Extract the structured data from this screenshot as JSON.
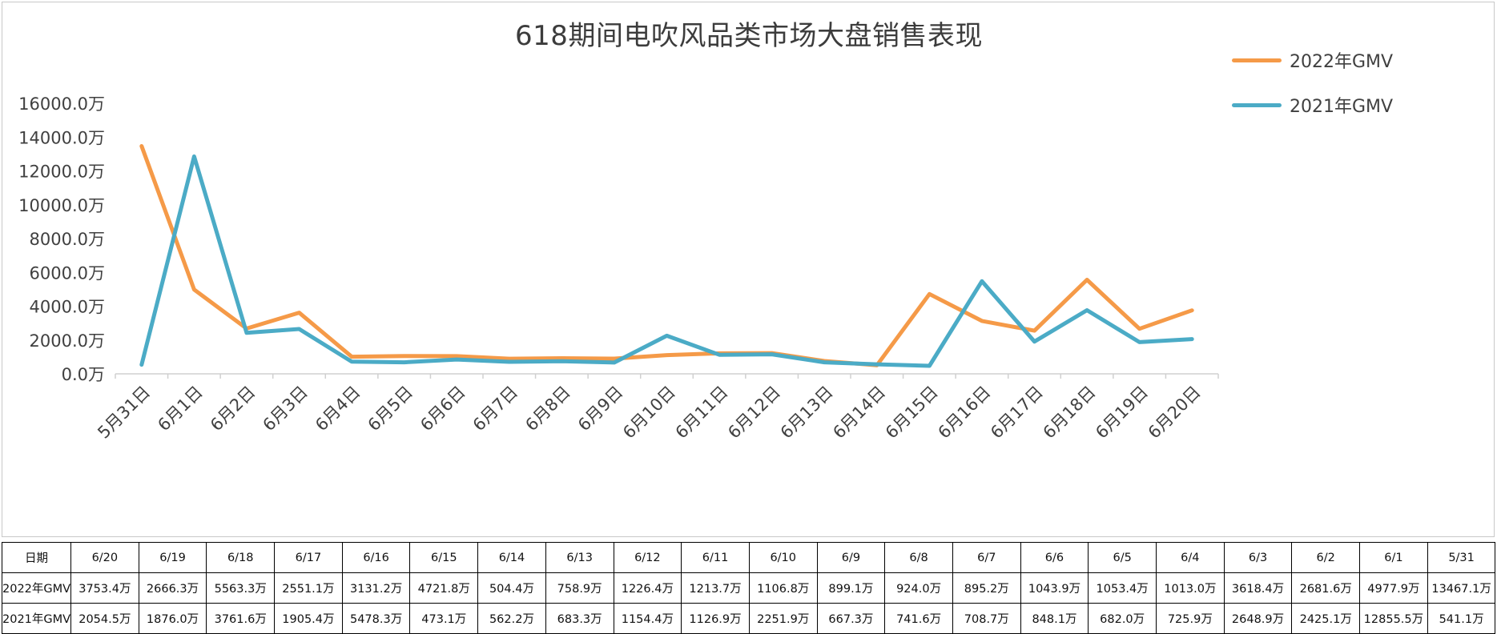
{
  "chart_data": {
    "type": "line",
    "title": "618期间电吹风品类市场大盘销售表现",
    "categories": [
      "5月31日",
      "6月1日",
      "6月2日",
      "6月3日",
      "6月4日",
      "6月5日",
      "6月6日",
      "6月7日",
      "6月8日",
      "6月9日",
      "6月10日",
      "6月11日",
      "6月12日",
      "6月13日",
      "6月14日",
      "6月15日",
      "6月16日",
      "6月17日",
      "6月18日",
      "6月19日",
      "6月20日"
    ],
    "series": [
      {
        "name": "2022年GMV",
        "color": "#f59a48",
        "values": [
          13467.1,
          4977.9,
          2681.6,
          3618.4,
          1013.0,
          1053.4,
          1043.9,
          895.2,
          924.0,
          899.1,
          1106.8,
          1213.7,
          1226.4,
          758.9,
          504.4,
          4721.8,
          3131.2,
          2551.1,
          5563.3,
          2666.3,
          3753.4
        ]
      },
      {
        "name": "2021年GMV",
        "color": "#4babc6",
        "values": [
          541.1,
          12855.5,
          2425.1,
          2648.9,
          725.9,
          682.0,
          848.1,
          708.7,
          741.6,
          667.3,
          2251.9,
          1126.9,
          1154.4,
          683.3,
          562.2,
          473.1,
          5478.3,
          1905.4,
          3761.6,
          1876.0,
          2054.5
        ]
      }
    ],
    "yticks": [
      "0.0万",
      "2000.0万",
      "4000.0万",
      "6000.0万",
      "8000.0万",
      "10000.0万",
      "12000.0万",
      "14000.0万",
      "16000.0万"
    ],
    "ylim": [
      0,
      16000
    ],
    "legend_position": "top-right",
    "grid": false
  },
  "table": {
    "header_label": "日期",
    "dates": [
      "6/20",
      "6/19",
      "6/18",
      "6/17",
      "6/16",
      "6/15",
      "6/14",
      "6/13",
      "6/12",
      "6/11",
      "6/10",
      "6/9",
      "6/8",
      "6/7",
      "6/6",
      "6/5",
      "6/4",
      "6/3",
      "6/2",
      "6/1",
      "5/31"
    ],
    "rows": [
      {
        "label": "2022年GMV",
        "cells": [
          "3753.4万",
          "2666.3万",
          "5563.3万",
          "2551.1万",
          "3131.2万",
          "4721.8万",
          "504.4万",
          "758.9万",
          "1226.4万",
          "1213.7万",
          "1106.8万",
          "899.1万",
          "924.0万",
          "895.2万",
          "1043.9万",
          "1053.4万",
          "1013.0万",
          "3618.4万",
          "2681.6万",
          "4977.9万",
          "13467.1万"
        ]
      },
      {
        "label": "2021年GMV",
        "cells": [
          "2054.5万",
          "1876.0万",
          "3761.6万",
          "1905.4万",
          "5478.3万",
          "473.1万",
          "562.2万",
          "683.3万",
          "1154.4万",
          "1126.9万",
          "2251.9万",
          "667.3万",
          "741.6万",
          "708.7万",
          "848.1万",
          "682.0万",
          "725.9万",
          "2648.9万",
          "2425.1万",
          "12855.5万",
          "541.1万"
        ]
      }
    ]
  }
}
